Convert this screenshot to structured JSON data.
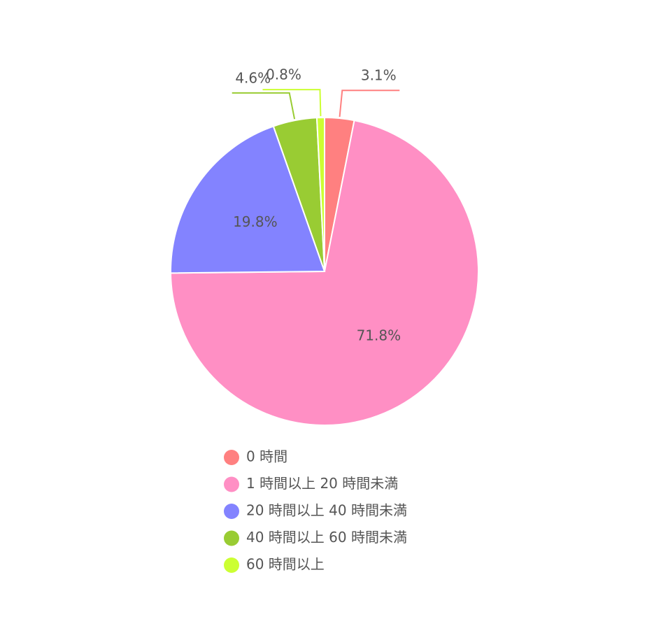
{
  "chart_data": {
    "type": "pie",
    "categories": [
      "0 時間",
      "1 時間以上 20 時間未満",
      "20 時間以上 40 時間未満",
      "40 時間以上 60 時間未満",
      "60 時間以上"
    ],
    "values": [
      3.1,
      71.8,
      19.8,
      4.6,
      0.8
    ],
    "value_labels": [
      "3.1%",
      "71.8%",
      "19.8%",
      "4.6%",
      "0.8%"
    ],
    "colors": [
      "#ff8080",
      "#ff8fc4",
      "#8383ff",
      "#99cc33",
      "#ccff33"
    ]
  }
}
